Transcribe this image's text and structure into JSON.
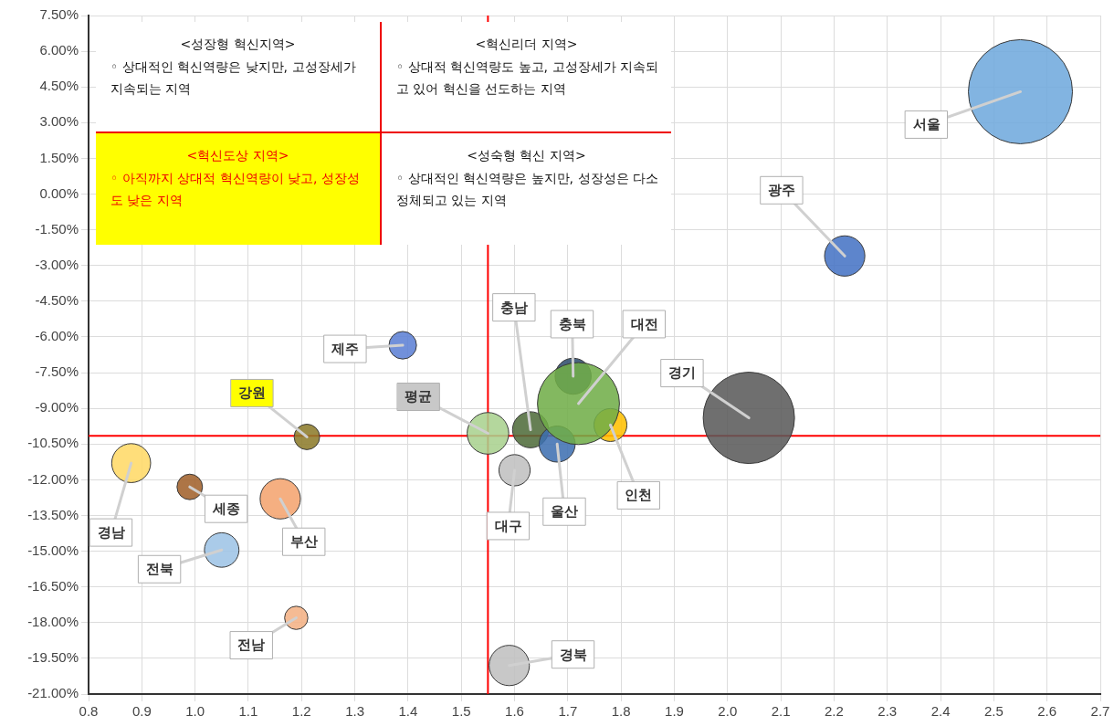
{
  "chart_data": {
    "type": "bubble",
    "xlim": [
      0.8,
      2.7
    ],
    "xticks": [
      0.8,
      0.9,
      {
        "value": 1,
        "label": "1.0"
      },
      1.1,
      1.2,
      1.3,
      1.4,
      1.5,
      1.6,
      1.7,
      1.8,
      1.9,
      {
        "value": 2,
        "label": "2.0"
      },
      2.1,
      2.2,
      2.3,
      2.4,
      2.5,
      2.6,
      2.7
    ],
    "ylim": [
      -21,
      7.5
    ],
    "yticks": [
      {
        "value": -21,
        "label": "-21.00%"
      },
      {
        "value": -19.5,
        "label": "-19.50%"
      },
      {
        "value": -18,
        "label": "-18.00%"
      },
      {
        "value": -16.5,
        "label": "-16.50%"
      },
      {
        "value": -15,
        "label": "-15.00%"
      },
      {
        "value": -13.5,
        "label": "-13.50%"
      },
      {
        "value": -12,
        "label": "-12.00%"
      },
      {
        "value": -10.5,
        "label": "-10.50%"
      },
      {
        "value": -9,
        "label": "-9.00%"
      },
      {
        "value": -7.5,
        "label": "-7.50%"
      },
      {
        "value": -6,
        "label": "-6.00%"
      },
      {
        "value": -4.5,
        "label": "-4.50%"
      },
      {
        "value": -3,
        "label": "-3.00%"
      },
      {
        "value": -1.5,
        "label": "-1.50%"
      },
      {
        "value": 0,
        "label": "0.00%"
      },
      {
        "value": 1.5,
        "label": "1.50%"
      },
      {
        "value": 3,
        "label": "3.00%"
      },
      {
        "value": 4.5,
        "label": "4.50%"
      },
      {
        "value": 6,
        "label": "6.00%"
      },
      {
        "value": 7.5,
        "label": "7.50%"
      }
    ],
    "grid": true,
    "legend": false,
    "ref_lines": [
      {
        "axis": "x",
        "value": 1.55,
        "color": "#ff0000"
      },
      {
        "axis": "y",
        "value": -10.15,
        "color": "#ff0000"
      }
    ],
    "annotations": [
      "<성장형 혁신지역>",
      "◦ 상대적인 혁신역량은 낮지만, 고성장세가 지속되는 지역",
      "<혁신리더 지역>",
      "◦ 상대적 혁신역량도 높고, 고성장세가 지속되고 있어 혁신을 선도하는 지역",
      "<혁신도상 지역>",
      "◦ 아직까지 상대적 혁신역량이 낮고, 성장성도 낮은 지역",
      "<성숙형 혁신 지역>",
      "◦ 상대적인 혁신역량은 높지만, 성장성은 다소 정체되고 있는 지역"
    ],
    "series": [
      {
        "name": "서울",
        "color": "#6fa8dc",
        "x": [
          2.55
        ],
        "values": [
          4.3
        ],
        "sizes": [
          1
        ]
      },
      {
        "name": "광주",
        "color": "#4472c4",
        "x": [
          2.22
        ],
        "values": [
          -2.6
        ],
        "sizes": [
          0.15
        ]
      },
      {
        "name": "경기",
        "color": "#595959",
        "x": [
          2.04
        ],
        "values": [
          -9.4
        ],
        "sizes": [
          0.77
        ]
      },
      {
        "name": "대전",
        "color": "#70ad47",
        "x": [
          1.72
        ],
        "values": [
          -8.8
        ],
        "sizes": [
          0.62
        ]
      },
      {
        "name": "충북",
        "color": "#2e4c6d",
        "x": [
          1.71
        ],
        "values": [
          -7.65
        ],
        "sizes": [
          0.12
        ]
      },
      {
        "name": "인천",
        "color": "#ffc000",
        "x": [
          1.78
        ],
        "values": [
          -9.7
        ],
        "sizes": [
          0.1
        ]
      },
      {
        "name": "울산",
        "color": "#3d6fb0",
        "x": [
          1.68
        ],
        "values": [
          -10.5
        ],
        "sizes": [
          0.12
        ]
      },
      {
        "name": "충남",
        "color": "#4f6b3a",
        "x": [
          1.63
        ],
        "values": [
          -9.9
        ],
        "sizes": [
          0.12
        ]
      },
      {
        "name": "평균",
        "color": "#a9d18e",
        "x": [
          1.55
        ],
        "values": [
          -10.05
        ],
        "sizes": [
          0.16
        ]
      },
      {
        "name": "대구",
        "color": "#bfbfbf",
        "x": [
          1.6
        ],
        "values": [
          -11.6
        ],
        "sizes": [
          0.09
        ]
      },
      {
        "name": "경북",
        "color": "#bfbfbf",
        "x": [
          1.59
        ],
        "values": [
          -19.8
        ],
        "sizes": [
          0.15
        ]
      },
      {
        "name": "제주",
        "color": "#5b7fd4",
        "x": [
          1.39
        ],
        "values": [
          -6.35
        ],
        "sizes": [
          0.07
        ]
      },
      {
        "name": "강원",
        "color": "#8c7a2a",
        "x": [
          1.21
        ],
        "values": [
          -10.2
        ],
        "sizes": [
          0.06
        ]
      },
      {
        "name": "경남",
        "color": "#ffd966",
        "x": [
          0.88
        ],
        "values": [
          -11.3
        ],
        "sizes": [
          0.14
        ]
      },
      {
        "name": "세종",
        "color": "#a0602a",
        "x": [
          0.99
        ],
        "values": [
          -12.3
        ],
        "sizes": [
          0.06
        ]
      },
      {
        "name": "부산",
        "color": "#f4a36e",
        "x": [
          1.16
        ],
        "values": [
          -12.8
        ],
        "sizes": [
          0.15
        ]
      },
      {
        "name": "전북",
        "color": "#9dc3e6",
        "x": [
          1.05
        ],
        "values": [
          -14.95
        ],
        "sizes": [
          0.11
        ]
      },
      {
        "name": "전남",
        "color": "#f4b183",
        "x": [
          1.19
        ],
        "values": [
          -17.8
        ],
        "sizes": [
          0.05
        ]
      }
    ]
  }
}
